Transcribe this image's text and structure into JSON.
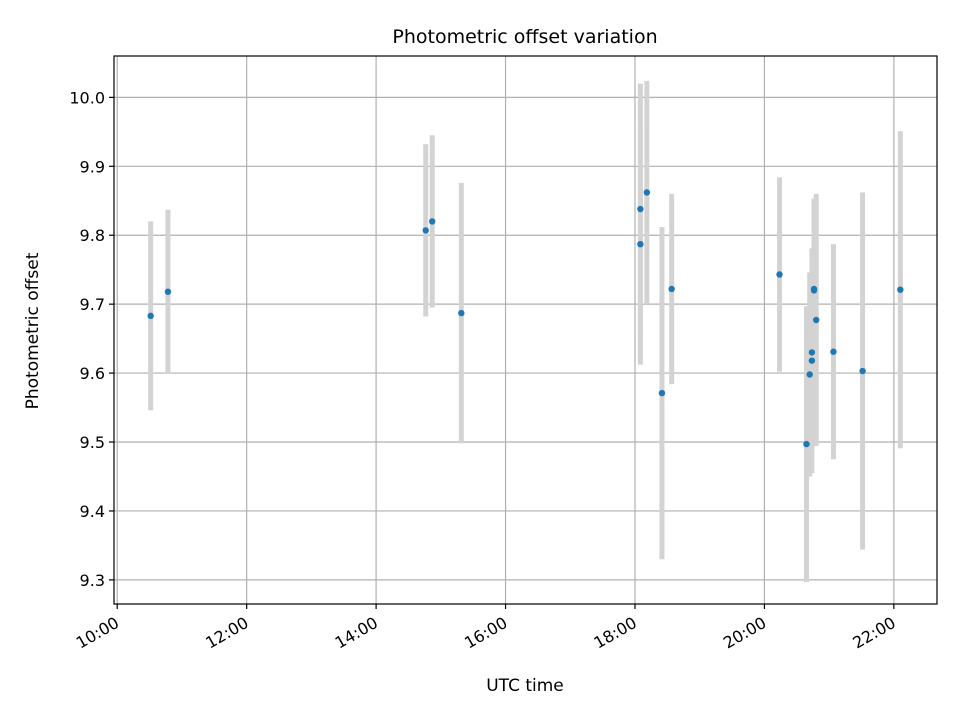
{
  "chart_data": {
    "type": "scatter",
    "title": "Photometric offset variation",
    "xlabel": "UTC time",
    "ylabel": "Photometric offset",
    "x_ticks": [
      "10:00",
      "12:00",
      "14:00",
      "16:00",
      "18:00",
      "20:00",
      "22:00"
    ],
    "x_tick_hours": [
      10,
      12,
      14,
      16,
      18,
      20,
      22
    ],
    "y_ticks": [
      "9.3",
      "9.4",
      "9.5",
      "9.6",
      "9.7",
      "9.8",
      "9.9",
      "10.0"
    ],
    "y_tick_values": [
      9.3,
      9.4,
      9.5,
      9.6,
      9.7,
      9.8,
      9.9,
      10.0
    ],
    "xlim": [
      "09:57",
      "22:40"
    ],
    "ylim": [
      9.265,
      10.06
    ],
    "grid": true,
    "colors": {
      "points": "#1f77b4",
      "error_bars": "#d3d3d3"
    },
    "points": [
      {
        "time": "10:31",
        "y": 9.683,
        "err": 0.137
      },
      {
        "time": "10:47",
        "y": 9.718,
        "err": 0.119
      },
      {
        "time": "14:46",
        "y": 9.807,
        "err": 0.125
      },
      {
        "time": "14:52",
        "y": 9.82,
        "err": 0.125
      },
      {
        "time": "15:19",
        "y": 9.687,
        "err": 0.189
      },
      {
        "time": "18:05",
        "y": 9.787,
        "err": 0.175
      },
      {
        "time": "18:05",
        "y": 9.838,
        "err": 0.182
      },
      {
        "time": "18:11",
        "y": 9.862,
        "err": 0.162
      },
      {
        "time": "18:25",
        "y": 9.571,
        "err": 0.241
      },
      {
        "time": "18:34",
        "y": 9.722,
        "err": 0.138
      },
      {
        "time": "20:14",
        "y": 9.743,
        "err": 0.141
      },
      {
        "time": "20:39",
        "y": 9.497,
        "err": 0.2
      },
      {
        "time": "20:42",
        "y": 9.598,
        "err": 0.148
      },
      {
        "time": "20:44",
        "y": 9.63,
        "err": 0.116
      },
      {
        "time": "20:44",
        "y": 9.618,
        "err": 0.163
      },
      {
        "time": "20:46",
        "y": 9.72,
        "err": 0.133
      },
      {
        "time": "20:46",
        "y": 9.722,
        "err": 0.131
      },
      {
        "time": "20:48",
        "y": 9.677,
        "err": 0.183
      },
      {
        "time": "21:04",
        "y": 9.631,
        "err": 0.156
      },
      {
        "time": "21:31",
        "y": 9.603,
        "err": 0.259
      },
      {
        "time": "22:06",
        "y": 9.721,
        "err": 0.23
      }
    ]
  }
}
